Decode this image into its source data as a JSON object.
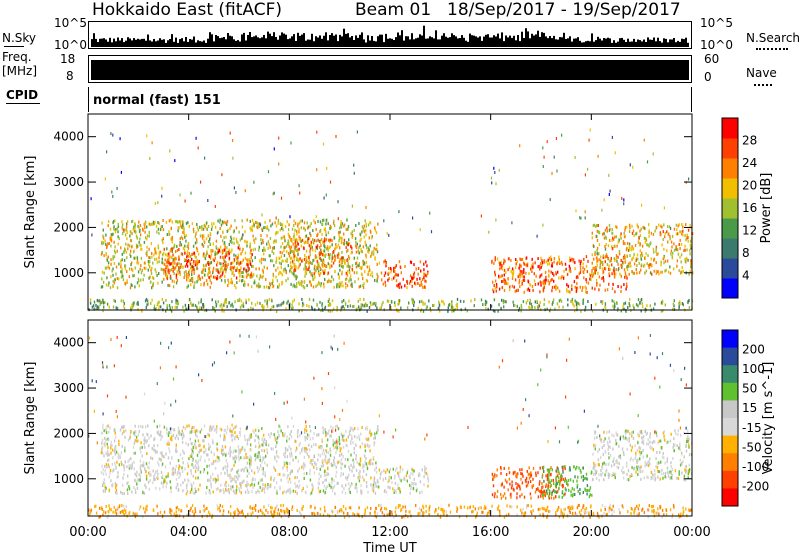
{
  "header": {
    "station": "Hokkaido East (fitACF)",
    "beam": "Beam 01",
    "date_range": "18/Sep/2017 - 19/Sep/2017"
  },
  "nsky": {
    "label": "N.Sky",
    "tick_top": "10^5",
    "tick_bottom": "10^0",
    "right_label": "N.Search",
    "right_tick_top": "10^5",
    "right_tick_bottom": "10^0"
  },
  "freq": {
    "label_top": "Freq.",
    "label_bottom": "[MHz]",
    "tick_top": "18",
    "tick_bottom": "8",
    "right_label": "Nave",
    "right_tick_top": "60",
    "right_tick_bottom": "0"
  },
  "cpid": {
    "label": "CPID",
    "value": "normal (fast) 151"
  },
  "x_axis": {
    "label": "Time UT",
    "ticks": [
      "00:00",
      "04:00",
      "08:00",
      "12:00",
      "16:00",
      "20:00",
      "00:00"
    ]
  },
  "colors": {
    "power_scale": [
      "#0000ff",
      "#2a4a9a",
      "#3d7a6e",
      "#4a9a4a",
      "#a0c030",
      "#f0c000",
      "#ff8000",
      "#ff4000",
      "#ff0000"
    ],
    "velocity_scale": [
      "#ff0000",
      "#ff4000",
      "#ff8000",
      "#ffb000",
      "#d8d8d8",
      "#c8c8c8",
      "#60c030",
      "#3a8a6e",
      "#2a4a9a",
      "#0000ff"
    ]
  },
  "chart_data": [
    {
      "type": "heatmap",
      "name": "power-panel",
      "ylabel": "Slant Range [km]",
      "xlabel": "Time UT",
      "xlim": [
        "00:00",
        "24:00"
      ],
      "ylim": [
        180,
        4500
      ],
      "yticks": [
        1000,
        2000,
        3000,
        4000
      ],
      "colorbar": {
        "label": "Power [dB]",
        "ticks": [
          4,
          8,
          12,
          16,
          20,
          24,
          28
        ],
        "range": [
          0,
          32
        ]
      },
      "regions": [
        {
          "t0": 0.5,
          "t1": 11.5,
          "r0": 700,
          "r1": 2200,
          "value": 18
        },
        {
          "t0": 3.0,
          "t1": 6.5,
          "r0": 900,
          "r1": 1600,
          "value": 26
        },
        {
          "t0": 8.0,
          "t1": 10.5,
          "r0": 1000,
          "r1": 1800,
          "value": 24
        },
        {
          "t0": 11.5,
          "t1": 13.5,
          "r0": 700,
          "r1": 1300,
          "value": 28
        },
        {
          "t0": 16.0,
          "t1": 21.5,
          "r0": 600,
          "r1": 1400,
          "value": 26
        },
        {
          "t0": 20.0,
          "t1": 24.0,
          "r0": 1000,
          "r1": 2100,
          "value": 20
        },
        {
          "t0": 0.0,
          "t1": 24.0,
          "r0": 180,
          "r1": 450,
          "value": 14
        }
      ]
    },
    {
      "type": "heatmap",
      "name": "velocity-panel",
      "ylabel": "Slant Range [km]",
      "xlabel": "Time UT",
      "xlim": [
        "00:00",
        "24:00"
      ],
      "ylim": [
        180,
        4500
      ],
      "yticks": [
        1000,
        2000,
        3000,
        4000
      ],
      "colorbar": {
        "label": "Velocity [m s^-1]",
        "ticks": [
          200,
          100,
          50,
          15,
          -15,
          -50,
          -100,
          -200
        ]
      },
      "regions": [
        {
          "t0": 0.5,
          "t1": 11.5,
          "r0": 700,
          "r1": 2200,
          "value": 0
        },
        {
          "t0": 11.5,
          "t1": 13.5,
          "r0": 700,
          "r1": 1300,
          "value": 0
        },
        {
          "t0": 16.0,
          "t1": 19.0,
          "r0": 600,
          "r1": 1300,
          "value": -80
        },
        {
          "t0": 18.0,
          "t1": 20.0,
          "r0": 600,
          "r1": 1300,
          "value": 40
        },
        {
          "t0": 20.0,
          "t1": 24.0,
          "r0": 1000,
          "r1": 2100,
          "value": 0
        },
        {
          "t0": 0.0,
          "t1": 24.0,
          "r0": 180,
          "r1": 450,
          "value": -30
        }
      ]
    }
  ]
}
